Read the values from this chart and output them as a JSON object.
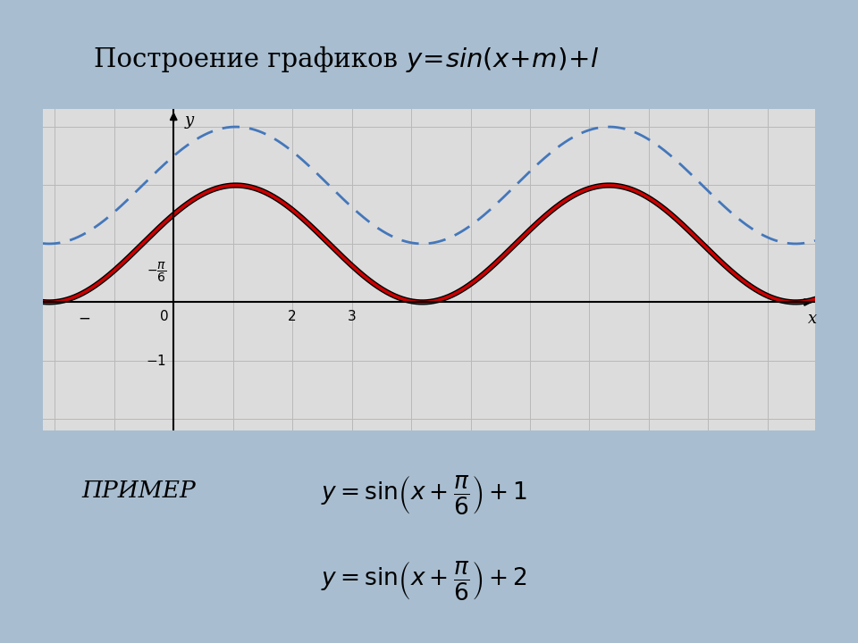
{
  "bg_color": "#a8bdd0",
  "plot_bg": "#dcdcdc",
  "grid_color": "#b8b8b8",
  "curve1_color": "#cc0000",
  "curve2_color": "#4477bb",
  "curve1_lw": 2.5,
  "curve2_lw": 2.0,
  "xmin": -2.2,
  "xmax": 10.8,
  "ymin": -2.2,
  "ymax": 3.3,
  "phase": 0.5235987755982988,
  "shift1": 1,
  "shift2": 2,
  "xlabel": "x",
  "ylabel": "y"
}
